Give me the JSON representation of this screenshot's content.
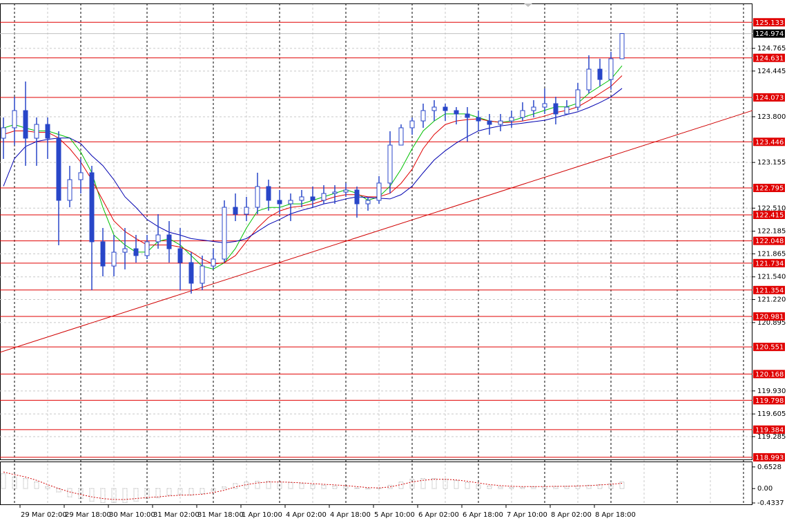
{
  "chart_data": {
    "type": "candlestick",
    "categories": [
      null,
      null,
      "29 Mar 02:00",
      null,
      null,
      null,
      "29 Mar 18:00",
      null,
      null,
      null,
      "30 Mar 10:00",
      null,
      null,
      null,
      "31 Mar 02:00",
      null,
      null,
      null,
      "31 Mar 18:00",
      null,
      null,
      null,
      "1 Apr 10:00",
      null,
      null,
      null,
      "4 Apr 02:00",
      null,
      null,
      null,
      "4 Apr 18:00",
      null,
      null,
      null,
      "5 Apr 10:00",
      null,
      null,
      null,
      "6 Apr 02:00",
      null,
      null,
      null,
      "6 Apr 18:00",
      null,
      null,
      null,
      "7 Apr 10:00",
      null,
      null,
      null,
      "8 Apr 02:00",
      null,
      null,
      null,
      "8 Apr 18:00",
      null,
      null
    ],
    "open": [
      123.497,
      123.644,
      123.887,
      123.497,
      123.692,
      123.497,
      122.62,
      122.912,
      123.01,
      122.035,
      121.693,
      121.888,
      121.937,
      121.84,
      122.035,
      122.132,
      121.937,
      121.742,
      121.45,
      121.693,
      121.791,
      122.522,
      122.425,
      122.522,
      122.815,
      122.62,
      122.571,
      122.62,
      122.669,
      122.62,
      122.717,
      122.737,
      122.766,
      122.571,
      122.62,
      122.864,
      123.4,
      123.644,
      123.741,
      123.887,
      123.936,
      123.887,
      123.839,
      123.79,
      123.741,
      123.692,
      123.741,
      123.79,
      123.887,
      123.936,
      123.985,
      123.839,
      123.936,
      124.18,
      124.472,
      124.326,
      124.619
    ],
    "high": [
      123.79,
      124.082,
      124.297,
      123.79,
      123.79,
      123.595,
      123.107,
      123.205,
      123.107,
      122.23,
      122.132,
      122.23,
      122.132,
      122.132,
      122.425,
      122.327,
      122.23,
      121.888,
      121.84,
      121.937,
      122.62,
      122.717,
      122.669,
      123.01,
      122.912,
      122.766,
      122.717,
      122.766,
      122.815,
      122.834,
      122.834,
      122.864,
      122.815,
      122.669,
      122.961,
      123.595,
      123.692,
      123.79,
      123.985,
      124.034,
      123.985,
      123.936,
      123.936,
      123.887,
      123.839,
      123.839,
      123.887,
      124.004,
      124.034,
      124.199,
      124.082,
      124.034,
      124.277,
      124.667,
      124.619,
      124.716,
      124.98
    ],
    "low": [
      123.205,
      123.4,
      123.107,
      123.107,
      123.205,
      121.986,
      122.522,
      122.717,
      121.352,
      121.547,
      121.547,
      121.645,
      121.742,
      121.791,
      121.937,
      121.742,
      121.352,
      121.303,
      121.352,
      121.645,
      121.742,
      122.327,
      122.327,
      122.425,
      122.474,
      122.425,
      122.327,
      122.522,
      122.522,
      122.571,
      122.571,
      122.669,
      122.376,
      122.474,
      122.571,
      122.717,
      123.4,
      123.546,
      123.644,
      123.741,
      123.741,
      123.692,
      123.449,
      123.595,
      123.546,
      123.595,
      123.644,
      123.741,
      123.79,
      123.839,
      123.692,
      123.839,
      123.887,
      124.131,
      124.229,
      124.18,
      124.619
    ],
    "close": [
      123.644,
      123.887,
      123.497,
      123.692,
      123.497,
      122.62,
      122.912,
      123.01,
      122.035,
      121.693,
      121.888,
      121.937,
      121.84,
      122.035,
      122.132,
      121.937,
      121.742,
      121.45,
      121.693,
      121.791,
      122.522,
      122.425,
      122.522,
      122.815,
      122.62,
      122.571,
      122.62,
      122.669,
      122.62,
      122.717,
      122.737,
      122.766,
      122.571,
      122.62,
      122.864,
      123.4,
      123.644,
      123.741,
      123.887,
      123.936,
      123.887,
      123.839,
      123.79,
      123.741,
      123.692,
      123.741,
      123.79,
      123.887,
      123.936,
      123.985,
      123.839,
      123.936,
      124.18,
      124.472,
      124.326,
      124.619,
      124.974
    ],
    "candle_color": "#2846c8",
    "moving_averages": [
      {
        "color": "#00c000",
        "values": [
          123.64,
          123.69,
          123.64,
          123.6,
          123.6,
          123.55,
          123.5,
          123.3,
          123.01,
          122.52,
          122.13,
          121.99,
          121.89,
          121.89,
          122.04,
          122.08,
          121.99,
          121.84,
          121.69,
          121.65,
          121.74,
          121.94,
          122.23,
          122.47,
          122.52,
          122.52,
          122.57,
          122.57,
          122.62,
          122.67,
          122.72,
          122.77,
          122.72,
          122.62,
          122.67,
          122.82,
          123.06,
          123.35,
          123.6,
          123.74,
          123.84,
          123.84,
          123.84,
          123.79,
          123.74,
          123.72,
          123.74,
          123.79,
          123.84,
          123.89,
          123.94,
          123.94,
          123.99,
          124.13,
          124.23,
          124.33,
          124.52
        ]
      },
      {
        "color": "#e00000",
        "values": [
          123.55,
          123.6,
          123.6,
          123.58,
          123.58,
          123.5,
          123.35,
          123.16,
          122.91,
          122.62,
          122.33,
          122.18,
          122.08,
          121.99,
          121.99,
          121.99,
          121.96,
          121.89,
          121.79,
          121.72,
          121.74,
          121.84,
          122.04,
          122.23,
          122.38,
          122.47,
          122.52,
          122.54,
          122.57,
          122.62,
          122.67,
          122.7,
          122.7,
          122.67,
          122.67,
          122.72,
          122.86,
          123.06,
          123.35,
          123.55,
          123.69,
          123.74,
          123.76,
          123.77,
          123.74,
          123.72,
          123.72,
          123.74,
          123.77,
          123.81,
          123.86,
          123.89,
          123.94,
          124.03,
          124.13,
          124.23,
          124.38
        ]
      },
      {
        "color": "#0000b0",
        "values": [
          122.82,
          123.21,
          123.38,
          123.45,
          123.48,
          123.5,
          123.5,
          123.42,
          123.25,
          123.11,
          122.91,
          122.67,
          122.52,
          122.35,
          122.25,
          122.17,
          122.13,
          122.08,
          122.06,
          122.04,
          122.02,
          122.04,
          122.08,
          122.18,
          122.28,
          122.35,
          122.43,
          122.48,
          122.52,
          122.57,
          122.6,
          122.64,
          122.67,
          122.66,
          122.65,
          122.64,
          122.7,
          122.82,
          123.01,
          123.19,
          123.32,
          123.43,
          123.52,
          123.6,
          123.64,
          123.67,
          123.69,
          123.71,
          123.73,
          123.75,
          123.79,
          123.83,
          123.87,
          123.93,
          124.0,
          124.08,
          124.2
        ]
      }
    ],
    "ylim": [
      118.963,
      125.399
    ],
    "yticks": [
      124.765,
      124.445,
      {
        "value": 123.8,
        "label": "123.800"
      },
      123.155,
      {
        "value": 122.51,
        "label": "122.510"
      },
      122.185,
      121.865,
      {
        "value": 121.54,
        "label": "121.540"
      },
      {
        "value": 121.22,
        "label": "121.220"
      },
      120.895,
      {
        "value": 119.93,
        "label": "119.930"
      },
      119.605,
      119.285
    ],
    "grid": true,
    "levels": [
      125.133,
      124.631,
      124.073,
      123.446,
      122.795,
      122.415,
      122.048,
      121.734,
      121.354,
      120.981,
      120.551,
      120.168,
      119.798,
      119.384,
      118.993
    ],
    "level_color": "#e00000",
    "bid": 124.974,
    "trendline": {
      "color": "#d00000",
      "x": [
        "29 Mar 02:00",
        "8 Apr 18:00"
      ],
      "values": [
        120.591,
        123.196
      ]
    },
    "oscillator": {
      "histogram": [
        0.45,
        0.35,
        0.3,
        0.2,
        0.05,
        -0.1,
        -0.25,
        -0.3,
        -0.38,
        -0.42,
        -0.42,
        -0.42,
        -0.38,
        -0.3,
        -0.28,
        -0.2,
        -0.18,
        -0.2,
        -0.15,
        -0.08,
        0.05,
        0.15,
        0.2,
        0.22,
        0.22,
        0.2,
        0.18,
        0.15,
        0.12,
        0.1,
        0.08,
        0.05,
        0.02,
        0.0,
        0.02,
        0.1,
        0.2,
        0.28,
        0.3,
        0.3,
        0.28,
        0.24,
        0.18,
        0.12,
        0.08,
        0.05,
        0.04,
        0.04,
        0.05,
        0.06,
        0.06,
        0.07,
        0.08,
        0.1,
        0.12,
        0.15,
        0.2
      ],
      "histogram_color": "#a8a8a8",
      "signal": [
        0.5,
        0.42,
        0.35,
        0.25,
        0.12,
        0.0,
        -0.1,
        -0.18,
        -0.25,
        -0.3,
        -0.33,
        -0.33,
        -0.3,
        -0.27,
        -0.25,
        -0.22,
        -0.2,
        -0.19,
        -0.17,
        -0.12,
        -0.05,
        0.05,
        0.12,
        0.17,
        0.2,
        0.2,
        0.19,
        0.17,
        0.15,
        0.13,
        0.11,
        0.09,
        0.06,
        0.03,
        0.02,
        0.05,
        0.12,
        0.2,
        0.25,
        0.28,
        0.28,
        0.26,
        0.22,
        0.17,
        0.12,
        0.09,
        0.07,
        0.06,
        0.06,
        0.06,
        0.07,
        0.07,
        0.08,
        0.09,
        0.11,
        0.13,
        0.16
      ],
      "signal_color": "#d00000",
      "ylim": [
        -0.4337,
        0.816
      ],
      "yticks": [
        0.6528,
        {
          "value": 0,
          "label": "0.00"
        },
        -0.4337
      ]
    }
  }
}
